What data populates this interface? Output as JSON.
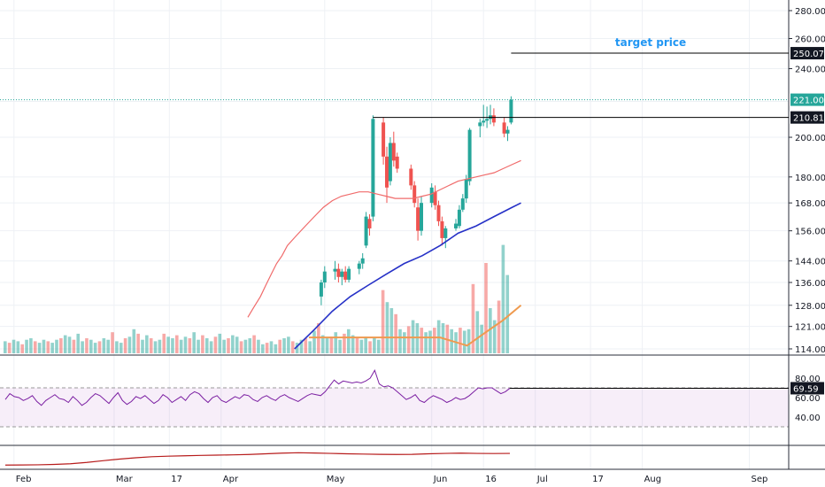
{
  "chart_data": {
    "type": "candlestick",
    "price_axis": {
      "scale": "log",
      "ticks": [
        114,
        121,
        128,
        136,
        144,
        156,
        168,
        180,
        200,
        220,
        240,
        260,
        280
      ],
      "tick_labels": [
        "114.00",
        "121.00",
        "128.00",
        "136.00",
        "144.00",
        "156.00",
        "168.00",
        "180.00",
        "200.00",
        "",
        "240.00",
        "260.00",
        "280.00"
      ]
    },
    "time_axis": {
      "labels": [
        "Feb",
        "Mar",
        "17",
        "Apr",
        "May",
        "Jun",
        "16",
        "Jul",
        "17",
        "Aug",
        "Sep"
      ]
    },
    "candles": [
      {
        "d": "2020-04-30",
        "o": 131,
        "h": 137,
        "l": 128,
        "c": 136
      },
      {
        "d": "2020-05-01",
        "o": 136,
        "h": 142,
        "l": 134,
        "c": 140
      },
      {
        "d": "2020-05-04",
        "o": 140,
        "h": 144,
        "l": 137,
        "c": 141
      },
      {
        "d": "2020-05-05",
        "o": 141,
        "h": 143,
        "l": 136,
        "c": 138
      },
      {
        "d": "2020-05-06",
        "o": 138,
        "h": 141,
        "l": 135,
        "c": 140
      },
      {
        "d": "2020-05-07",
        "o": 140,
        "h": 142,
        "l": 136,
        "c": 137
      },
      {
        "d": "2020-05-08",
        "o": 137,
        "h": 142,
        "l": 136,
        "c": 141
      },
      {
        "d": "2020-05-11",
        "o": 141,
        "h": 144,
        "l": 139,
        "c": 143
      },
      {
        "d": "2020-05-12",
        "o": 143,
        "h": 147,
        "l": 141,
        "c": 145
      },
      {
        "d": "2020-05-13",
        "o": 150,
        "h": 164,
        "l": 149,
        "c": 162
      },
      {
        "d": "2020-05-14",
        "o": 161,
        "h": 163,
        "l": 154,
        "c": 157
      },
      {
        "d": "2020-05-15",
        "o": 162,
        "h": 212,
        "l": 160,
        "c": 210
      },
      {
        "d": "2020-05-18",
        "o": 208,
        "h": 211,
        "l": 186,
        "c": 190
      },
      {
        "d": "2020-05-19",
        "o": 190,
        "h": 195,
        "l": 168,
        "c": 175
      },
      {
        "d": "2020-05-20",
        "o": 178,
        "h": 200,
        "l": 176,
        "c": 197
      },
      {
        "d": "2020-05-21",
        "o": 197,
        "h": 203,
        "l": 185,
        "c": 188
      },
      {
        "d": "2020-05-22",
        "o": 190,
        "h": 192,
        "l": 182,
        "c": 184
      },
      {
        "d": "2020-05-26",
        "o": 184,
        "h": 186,
        "l": 174,
        "c": 176
      },
      {
        "d": "2020-05-27",
        "o": 176,
        "h": 178,
        "l": 166,
        "c": 168
      },
      {
        "d": "2020-05-28",
        "o": 166,
        "h": 170,
        "l": 152,
        "c": 156
      },
      {
        "d": "2020-05-29",
        "o": 156,
        "h": 171,
        "l": 154,
        "c": 168
      },
      {
        "d": "2020-06-01",
        "o": 168,
        "h": 177,
        "l": 166,
        "c": 175
      },
      {
        "d": "2020-06-02",
        "o": 173,
        "h": 176,
        "l": 165,
        "c": 167
      },
      {
        "d": "2020-06-03",
        "o": 167,
        "h": 169,
        "l": 158,
        "c": 160
      },
      {
        "d": "2020-06-04",
        "o": 160,
        "h": 162,
        "l": 150,
        "c": 153
      },
      {
        "d": "2020-06-05",
        "o": 153,
        "h": 158,
        "l": 149,
        "c": 157
      },
      {
        "d": "2020-06-08",
        "o": 157,
        "h": 161,
        "l": 156,
        "c": 159
      },
      {
        "d": "2020-06-09",
        "o": 158,
        "h": 167,
        "l": 157,
        "c": 165
      },
      {
        "d": "2020-06-10",
        "o": 165,
        "h": 172,
        "l": 164,
        "c": 170
      },
      {
        "d": "2020-06-11",
        "o": 170,
        "h": 181,
        "l": 168,
        "c": 179
      },
      {
        "d": "2020-06-12",
        "o": 178,
        "h": 205,
        "l": 176,
        "c": 204
      },
      {
        "d": "2020-06-15",
        "o": 206,
        "h": 210,
        "l": 200,
        "c": 208
      },
      {
        "d": "2020-06-16",
        "o": 208,
        "h": 218,
        "l": 206,
        "c": 209
      },
      {
        "d": "2020-06-17",
        "o": 209,
        "h": 217,
        "l": 205,
        "c": 210
      },
      {
        "d": "2020-06-18",
        "o": 210,
        "h": 218,
        "l": 207,
        "c": 212
      },
      {
        "d": "2020-06-19",
        "o": 212,
        "h": 216,
        "l": 206,
        "c": 208
      },
      {
        "d": "2020-06-22",
        "o": 208,
        "h": 211,
        "l": 200,
        "c": 202
      },
      {
        "d": "2020-06-23",
        "o": 202,
        "h": 206,
        "l": 198,
        "c": 204
      },
      {
        "d": "2020-06-24",
        "o": 208,
        "h": 223,
        "l": 207,
        "c": 221
      }
    ],
    "volume": [
      8,
      7,
      9,
      8,
      6,
      9,
      10,
      8,
      7,
      9,
      8,
      7,
      9,
      10,
      12,
      11,
      9,
      13,
      8,
      10,
      9,
      7,
      8,
      10,
      9,
      14,
      8,
      7,
      10,
      11,
      16,
      13,
      9,
      12,
      10,
      8,
      9,
      13,
      11,
      10,
      12,
      9,
      11,
      10,
      14,
      9,
      12,
      10,
      8,
      11,
      13,
      9,
      10,
      12,
      11,
      8,
      9,
      10,
      12,
      9,
      6,
      7,
      8,
      6,
      9,
      10,
      11,
      8,
      7,
      9,
      10,
      8,
      15,
      20,
      12,
      10,
      11,
      14,
      9,
      13,
      16,
      12,
      10,
      9,
      11,
      8,
      10,
      9,
      42,
      34,
      30,
      26,
      16,
      14,
      18,
      22,
      20,
      17,
      14,
      15,
      17,
      22,
      20,
      19,
      16,
      14,
      17,
      15,
      16,
      46,
      28,
      19,
      60,
      30,
      22,
      35,
      72,
      52
    ],
    "sma_red": [
      [
        133,
        124
      ],
      [
        136,
        127
      ],
      [
        140,
        131
      ],
      [
        143,
        135
      ],
      [
        146,
        139
      ],
      [
        149,
        143
      ],
      [
        152,
        146
      ],
      [
        155,
        150
      ],
      [
        160,
        154
      ],
      [
        165,
        158
      ],
      [
        170,
        162
      ],
      [
        175,
        166
      ],
      [
        180,
        169
      ],
      [
        185,
        171
      ],
      [
        190,
        172
      ],
      [
        195,
        173
      ],
      [
        200,
        173
      ],
      [
        205,
        172
      ],
      [
        210,
        171
      ],
      [
        215,
        170
      ],
      [
        220,
        170
      ],
      [
        225,
        170
      ],
      [
        230,
        171
      ],
      [
        235,
        172
      ],
      [
        240,
        174
      ],
      [
        245,
        176
      ],
      [
        250,
        178
      ],
      [
        255,
        179
      ],
      [
        260,
        180
      ],
      [
        265,
        181
      ],
      [
        270,
        182
      ],
      [
        275,
        184
      ],
      [
        280,
        186
      ],
      [
        285,
        188
      ]
    ],
    "sma_blue": [
      [
        159,
        114
      ],
      [
        170,
        120
      ],
      [
        180,
        126
      ],
      [
        190,
        131
      ],
      [
        200,
        135
      ],
      [
        210,
        139
      ],
      [
        220,
        143
      ],
      [
        230,
        146
      ],
      [
        240,
        150
      ],
      [
        250,
        155
      ],
      [
        260,
        158
      ],
      [
        270,
        162
      ],
      [
        280,
        166
      ],
      [
        285,
        168
      ]
    ],
    "vol_ma_orange": [
      [
        167,
        117.5
      ],
      [
        185,
        117.5
      ],
      [
        205,
        117.5
      ],
      [
        225,
        117.5
      ],
      [
        240,
        117.5
      ],
      [
        255,
        115
      ],
      [
        265,
        119
      ],
      [
        275,
        123
      ],
      [
        285,
        128
      ]
    ],
    "horizontal_lines": [
      {
        "value": 210.81,
        "label": "210.81"
      },
      {
        "value": 250.07,
        "label": "250.07"
      }
    ],
    "last_price": {
      "value": 221.0,
      "label": "221.00",
      "color": "#26a69a"
    },
    "annotation": {
      "text": "target price",
      "color": "#2196f3"
    },
    "rsi": {
      "ticks": [
        40,
        60,
        80
      ],
      "bands": [
        30,
        70
      ],
      "last_label": "69.59",
      "values": [
        58,
        64,
        61,
        60,
        57,
        59,
        62,
        56,
        52,
        57,
        60,
        63,
        59,
        58,
        55,
        61,
        57,
        52,
        55,
        60,
        64,
        62,
        58,
        54,
        60,
        65,
        57,
        53,
        56,
        61,
        59,
        62,
        58,
        54,
        57,
        63,
        60,
        55,
        58,
        61,
        57,
        63,
        66,
        64,
        59,
        55,
        60,
        62,
        57,
        55,
        58,
        61,
        59,
        63,
        62,
        58,
        56,
        60,
        62,
        59,
        57,
        61,
        63,
        60,
        58,
        56,
        59,
        62,
        64,
        63,
        62,
        66,
        72,
        78,
        74,
        77,
        76,
        75,
        76,
        75,
        77,
        80,
        88,
        74,
        71,
        72,
        70,
        66,
        62,
        58,
        60,
        63,
        57,
        55,
        59,
        62,
        60,
        58,
        55,
        57,
        60,
        58,
        59,
        62,
        66,
        70,
        69,
        70,
        70,
        67,
        64,
        66,
        69.59
      ]
    },
    "lower_indicator": {
      "color": "#b71c1c",
      "values": [
        0.05,
        0.06,
        0.07,
        0.1,
        0.15,
        0.25,
        0.38,
        0.5,
        0.6,
        0.68,
        0.72,
        0.75,
        0.78,
        0.8,
        0.82,
        0.85,
        0.9,
        0.95,
        0.98,
        0.96,
        0.93,
        0.9,
        0.88,
        0.86,
        0.85,
        0.86,
        0.9,
        0.93,
        0.95,
        0.93,
        0.92,
        0.93
      ]
    }
  }
}
